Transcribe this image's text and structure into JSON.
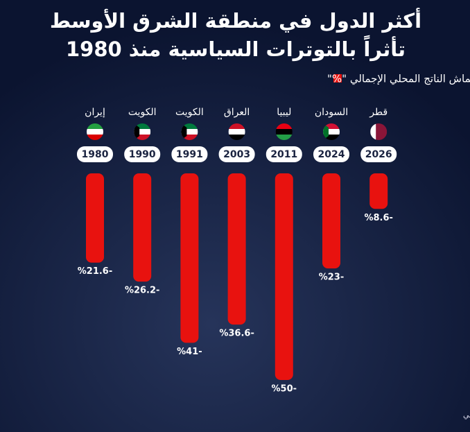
{
  "chart_data": {
    "type": "bar",
    "title": [
      "أكثر الدول في منطقة الشرق الأوسط",
      "تأثراً بالتوترات السياسية منذ 1980"
    ],
    "legend": "انكماش الناتج المحلي الإجمالي \"%\"",
    "categories": [
      "إيران",
      "الكويت",
      "الكويت",
      "العراق",
      "ليبيا",
      "السودان",
      "قطر"
    ],
    "years": [
      "1980",
      "1990",
      "1991",
      "2003",
      "2011",
      "2024",
      "2026"
    ],
    "values": [
      -21.6,
      -26.2,
      -41,
      -36.6,
      -50,
      -23,
      -8.6
    ],
    "value_labels": [
      "%21.6-",
      "%26.2-",
      "%41-",
      "%36.6-",
      "%50-",
      "%23-",
      "%8.6-"
    ],
    "color": "#e8120f",
    "source": "المصدر: بيانات صندوق النقد الدولي"
  }
}
